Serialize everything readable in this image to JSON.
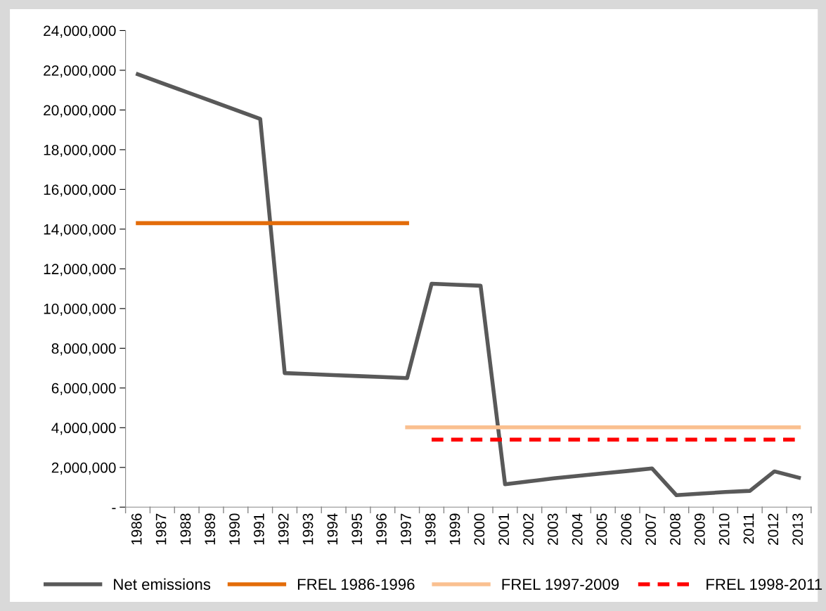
{
  "chart_data": {
    "type": "line",
    "categories": [
      "1986",
      "1987",
      "1988",
      "1989",
      "1990",
      "1991",
      "1992",
      "1993",
      "1994",
      "1995",
      "1996",
      "1997",
      "1998",
      "1999",
      "2000",
      "2001",
      "2002",
      "2003",
      "2004",
      "2005",
      "2006",
      "2007",
      "2008",
      "2009",
      "2010",
      "2011",
      "2012",
      "2013"
    ],
    "series": [
      {
        "name": "Net emissions",
        "color": "#595959",
        "line_style": "solid",
        "values": [
          21800000,
          21350000,
          20900000,
          20450000,
          20000000,
          19550000,
          6750000,
          6700000,
          6650000,
          6600000,
          6550000,
          6500000,
          11250000,
          11200000,
          11150000,
          1150000,
          1300000,
          1450000,
          1580000,
          1700000,
          1820000,
          1950000,
          600000,
          680000,
          760000,
          820000,
          1800000,
          1480000
        ]
      },
      {
        "name": "FREL 1986-1996",
        "color": "#e36c09",
        "line_style": "solid",
        "values": [
          14300000,
          14300000,
          14300000,
          14300000,
          14300000,
          14300000,
          14300000,
          14300000,
          14300000,
          14300000,
          14300000,
          14300000,
          null,
          null,
          null,
          null,
          null,
          null,
          null,
          null,
          null,
          null,
          null,
          null,
          null,
          null,
          null,
          null
        ]
      },
      {
        "name": "FREL 1997-2009",
        "color": "#fac090",
        "line_style": "solid",
        "values": [
          null,
          null,
          null,
          null,
          null,
          null,
          null,
          null,
          null,
          null,
          null,
          4020000,
          4020000,
          4020000,
          4020000,
          4020000,
          4020000,
          4020000,
          4020000,
          4020000,
          4020000,
          4020000,
          4020000,
          4020000,
          4020000,
          4020000,
          4020000,
          4020000
        ]
      },
      {
        "name": "FREL 1998-2011",
        "color": "#ff0000",
        "line_style": "dashed",
        "values": [
          null,
          null,
          null,
          null,
          null,
          null,
          null,
          null,
          null,
          null,
          null,
          null,
          3400000,
          3400000,
          3400000,
          3400000,
          3400000,
          3400000,
          3400000,
          3400000,
          3400000,
          3400000,
          3400000,
          3400000,
          3400000,
          3400000,
          3400000,
          3400000
        ]
      }
    ],
    "ylim": [
      0,
      24000000
    ],
    "yticks": [
      {
        "value": 0,
        "label": "-"
      },
      {
        "value": 2000000,
        "label": "2,000,000"
      },
      {
        "value": 4000000,
        "label": "4,000,000"
      },
      {
        "value": 6000000,
        "label": "6,000,000"
      },
      {
        "value": 8000000,
        "label": "8,000,000"
      },
      {
        "value": 10000000,
        "label": "10,000,000"
      },
      {
        "value": 12000000,
        "label": "12,000,000"
      },
      {
        "value": 14000000,
        "label": "14,000,000"
      },
      {
        "value": 16000000,
        "label": "16,000,000"
      },
      {
        "value": 18000000,
        "label": "18,000,000"
      },
      {
        "value": 20000000,
        "label": "20,000,000"
      },
      {
        "value": 22000000,
        "label": "22,000,000"
      },
      {
        "value": 24000000,
        "label": "24,000,000"
      }
    ],
    "grid": false,
    "legend": "bottom",
    "marker": "none"
  }
}
